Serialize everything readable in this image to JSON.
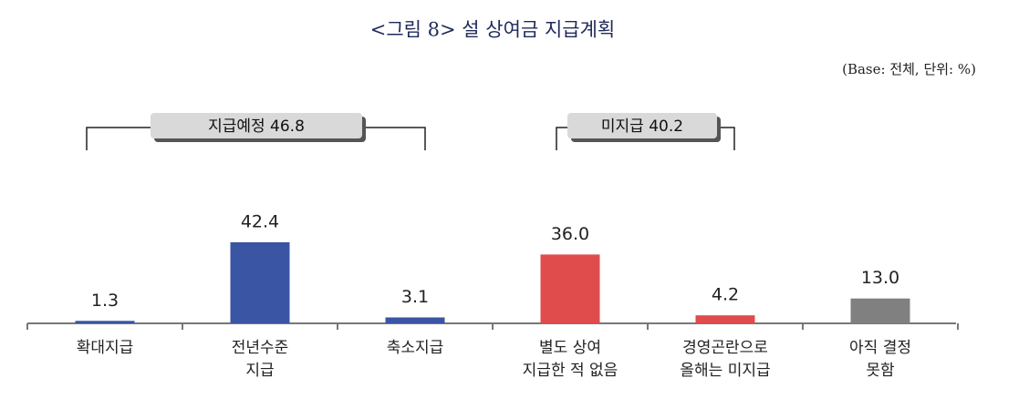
{
  "chart_data": {
    "type": "bar",
    "title": "<그림 8> 설 상여금 지급계획",
    "subtitle": "(Base: 전체, 단위: %)",
    "categories": [
      "확대지급",
      "전년수준\n지급",
      "축소지급",
      "별도 상여\n지급한 적 없음",
      "경영곤란으로\n올해는 미지급",
      "아직 결정\n못함"
    ],
    "values": [
      1.3,
      42.4,
      3.1,
      36.0,
      4.2,
      13.0
    ],
    "value_labels": [
      "1.3",
      "42.4",
      "3.1",
      "36.0",
      "4.2",
      "13.0"
    ],
    "colors": [
      "#3a55a4",
      "#3a55a4",
      "#3a55a4",
      "#e04c4c",
      "#e04c4c",
      "#808080"
    ],
    "annotations": [
      "지급예정 46.8",
      "미지급 40.2"
    ]
  }
}
